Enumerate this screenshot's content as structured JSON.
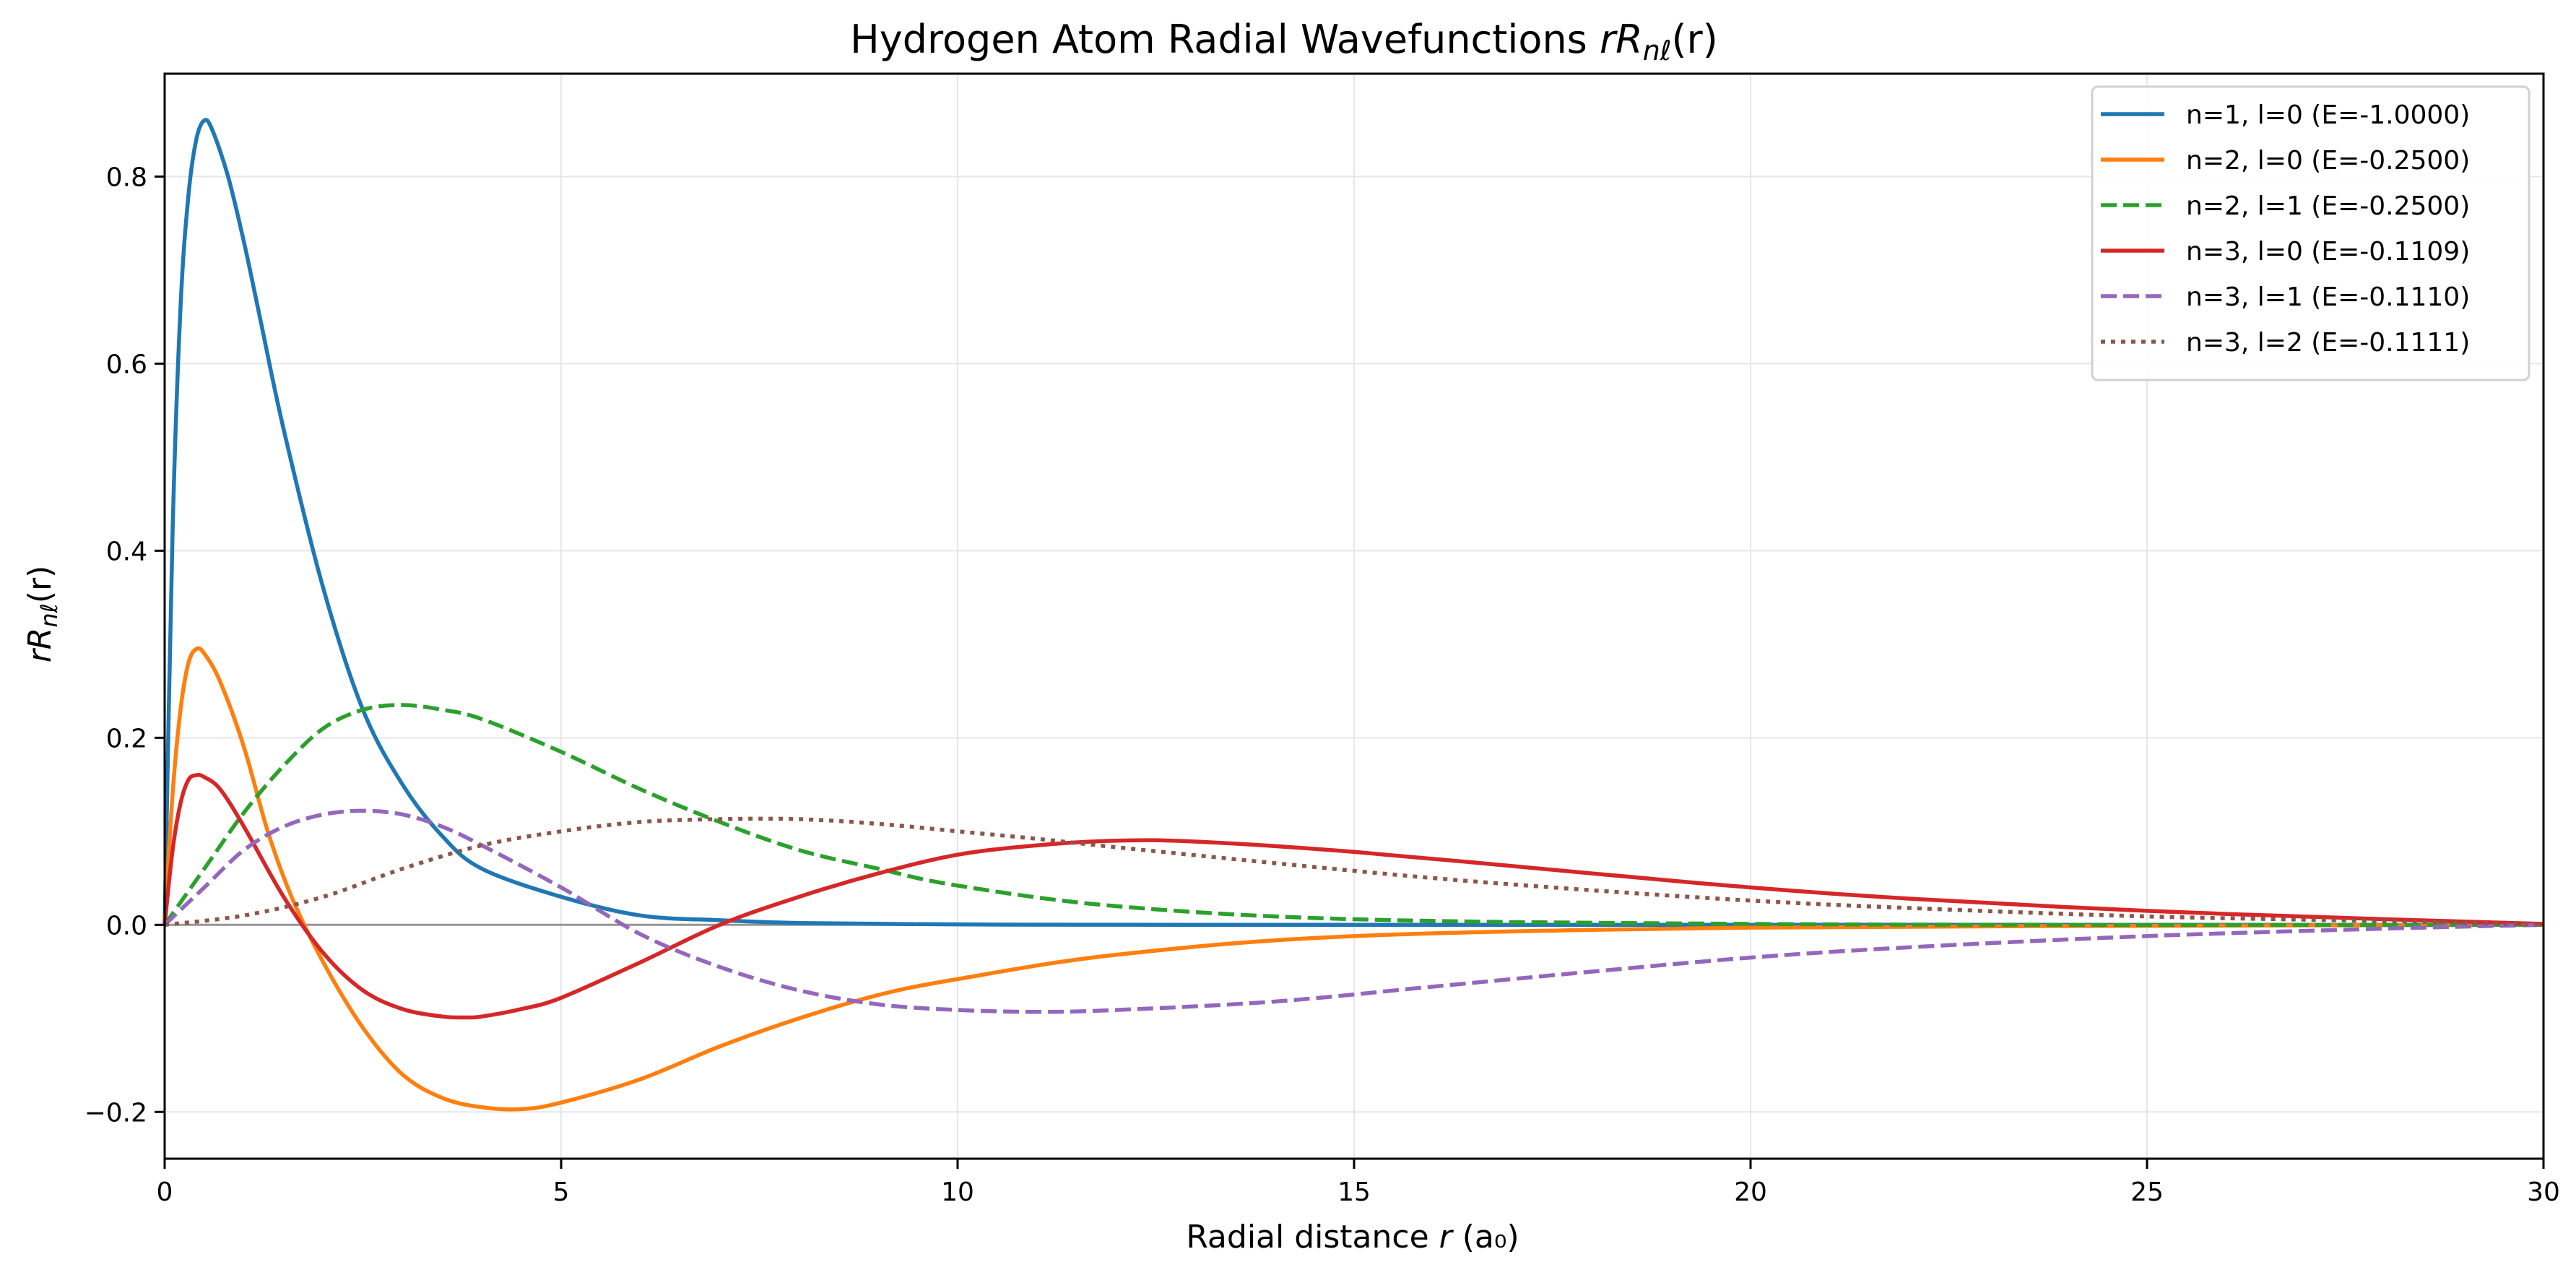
{
  "chart_data": {
    "type": "line",
    "title_prefix": "Hydrogen Atom Radial Wavefunctions ",
    "title_math": {
      "r": "r",
      "R": "R",
      "sub": "nℓ",
      "arg": "(r)"
    },
    "xlabel_prefix": "Radial distance ",
    "xlabel_var": "r",
    "xlabel_unit": " (a₀)",
    "ylabel_math": {
      "r": "r",
      "R": "R",
      "sub": "nℓ",
      "arg": "(r)"
    },
    "xlim": [
      0,
      30
    ],
    "ylim": [
      -0.25,
      0.91
    ],
    "xticks": [
      0,
      5,
      10,
      15,
      20,
      25,
      30
    ],
    "xtick_labels": [
      "0",
      "5",
      "10",
      "15",
      "20",
      "25",
      "30"
    ],
    "yticks": [
      -0.2,
      0.0,
      0.2,
      0.4,
      0.6,
      0.8
    ],
    "ytick_labels": [
      "−0.2",
      "0.0",
      "0.2",
      "0.4",
      "0.6",
      "0.8"
    ],
    "grid": true,
    "legend_position": "top-right",
    "series": [
      {
        "name": "n=1, l=0 (E=-1.0000)",
        "color": "#1f77b4",
        "dash": "solid",
        "x": [
          0,
          0.1,
          0.2,
          0.3,
          0.4,
          0.5,
          0.6,
          0.8,
          1.0,
          1.2,
          1.5,
          2.0,
          2.5,
          3.0,
          3.5,
          4.0,
          5.0,
          6.0,
          7.0,
          8.0,
          10.0,
          12.0,
          15.0,
          20.0,
          25.0,
          30.0
        ],
        "y": [
          0,
          0.42,
          0.66,
          0.78,
          0.84,
          0.86,
          0.85,
          0.8,
          0.73,
          0.65,
          0.53,
          0.36,
          0.23,
          0.15,
          0.095,
          0.06,
          0.03,
          0.01,
          0.005,
          0.002,
          0.0005,
          0.0001,
          0,
          0,
          0,
          0
        ]
      },
      {
        "name": "n=2, l=0 (E=-0.2500)",
        "color": "#ff7f0e",
        "dash": "solid",
        "x": [
          0,
          0.1,
          0.2,
          0.3,
          0.4,
          0.5,
          0.7,
          1.0,
          1.3,
          1.6,
          2.0,
          2.5,
          3.0,
          3.5,
          4.0,
          4.5,
          5.0,
          6.0,
          7.0,
          8.0,
          9.0,
          10.0,
          12.0,
          15.0,
          20.0,
          25.0,
          30.0
        ],
        "y": [
          0,
          0.14,
          0.23,
          0.28,
          0.295,
          0.29,
          0.26,
          0.19,
          0.1,
          0.03,
          -0.04,
          -0.11,
          -0.16,
          -0.185,
          -0.195,
          -0.197,
          -0.19,
          -0.165,
          -0.13,
          -0.1,
          -0.075,
          -0.058,
          -0.032,
          -0.012,
          -0.003,
          -0.001,
          0
        ]
      },
      {
        "name": "n=2, l=1 (E=-0.2500)",
        "color": "#2ca02c",
        "dash": "dashed",
        "x": [
          0,
          0.5,
          1.0,
          1.5,
          2.0,
          2.5,
          3.0,
          3.5,
          4.0,
          5.0,
          6.0,
          7.0,
          8.0,
          9.0,
          10.0,
          12.0,
          15.0,
          20.0,
          25.0,
          30.0
        ],
        "y": [
          0,
          0.06,
          0.12,
          0.17,
          0.21,
          0.23,
          0.235,
          0.23,
          0.22,
          0.185,
          0.145,
          0.11,
          0.08,
          0.06,
          0.042,
          0.02,
          0.006,
          0.001,
          0,
          0
        ]
      },
      {
        "name": "n=3, l=0 (E=-0.1109)",
        "color": "#d62728",
        "dash": "solid",
        "x": [
          0,
          0.1,
          0.2,
          0.3,
          0.4,
          0.5,
          0.7,
          1.0,
          1.5,
          2.0,
          2.5,
          3.0,
          3.5,
          3.8,
          4.0,
          4.5,
          5.0,
          6.0,
          7.0,
          8.0,
          9.0,
          10.0,
          11.0,
          12.0,
          13.0,
          15.0,
          18.0,
          20.0,
          22.0,
          25.0,
          28.0,
          30.0
        ],
        "y": [
          0,
          0.08,
          0.13,
          0.155,
          0.16,
          0.158,
          0.145,
          0.105,
          0.03,
          -0.03,
          -0.07,
          -0.09,
          -0.098,
          -0.099,
          -0.098,
          -0.09,
          -0.078,
          -0.04,
          0.0,
          0.03,
          0.055,
          0.075,
          0.085,
          0.09,
          0.089,
          0.078,
          0.055,
          0.04,
          0.028,
          0.015,
          0.006,
          0.001
        ]
      },
      {
        "name": "n=3, l=1 (E=-0.1110)",
        "color": "#9467bd",
        "dash": "dashed",
        "x": [
          0,
          0.5,
          1.0,
          1.5,
          2.0,
          2.5,
          3.0,
          3.5,
          4.0,
          5.0,
          6.0,
          7.0,
          8.0,
          9.0,
          10.0,
          11.0,
          12.0,
          14.0,
          16.0,
          18.0,
          20.0,
          22.0,
          25.0,
          28.0,
          30.0
        ],
        "y": [
          0,
          0.04,
          0.08,
          0.105,
          0.118,
          0.122,
          0.118,
          0.105,
          0.085,
          0.04,
          -0.01,
          -0.045,
          -0.07,
          -0.085,
          -0.091,
          -0.093,
          -0.091,
          -0.082,
          -0.066,
          -0.05,
          -0.035,
          -0.024,
          -0.012,
          -0.004,
          0
        ]
      },
      {
        "name": "n=3, l=2 (E=-0.1111)",
        "color": "#8c564b",
        "dash": "dotted",
        "x": [
          0,
          1.0,
          2.0,
          3.0,
          4.0,
          5.0,
          6.0,
          7.0,
          8.0,
          9.0,
          10.0,
          11.0,
          12.0,
          14.0,
          16.0,
          18.0,
          20.0,
          22.0,
          25.0,
          28.0,
          30.0
        ],
        "y": [
          0,
          0.01,
          0.03,
          0.06,
          0.085,
          0.1,
          0.11,
          0.113,
          0.113,
          0.108,
          0.1,
          0.092,
          0.083,
          0.066,
          0.05,
          0.037,
          0.026,
          0.018,
          0.009,
          0.004,
          0
        ]
      }
    ]
  }
}
